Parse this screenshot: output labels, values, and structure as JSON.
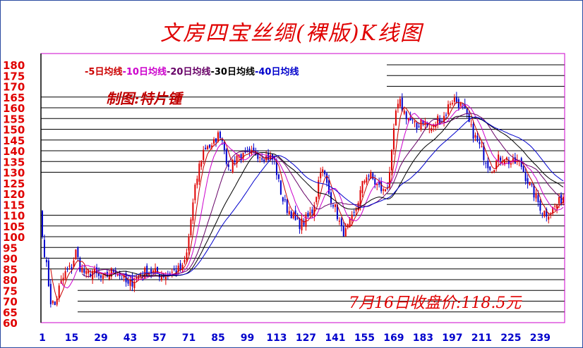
{
  "title": "文房四宝丝绸(裸版)K线图",
  "author_tag": "制图:特片锺",
  "close_note": "7月16日收盘价:118.5元",
  "legend": [
    {
      "label": "-5日均线",
      "color": "#cc0000"
    },
    {
      "label": "-10日均线",
      "color": "#cc00cc"
    },
    {
      "label": "-20日均线",
      "color": "#660066"
    },
    {
      "label": "-30日均线",
      "color": "#000000"
    },
    {
      "label": "-40日均线",
      "color": "#0000cc"
    }
  ],
  "colors": {
    "up": "#e00000",
    "down": "#0000cc",
    "axis_text": "#e00000",
    "x_text": "#0000cc",
    "border": "#cc00cc"
  },
  "chart_data": {
    "type": "candlestick",
    "x_ticks": [
      "1",
      "15",
      "29",
      "43",
      "57",
      "71",
      "85",
      "99",
      "113",
      "127",
      "141",
      "155",
      "169",
      "183",
      "197",
      "211",
      "225",
      "239"
    ],
    "y_ticks": [
      60,
      65,
      70,
      75,
      80,
      85,
      90,
      95,
      100,
      105,
      110,
      115,
      120,
      125,
      130,
      135,
      140,
      145,
      150,
      155,
      160,
      165,
      170,
      175,
      180
    ],
    "ylim": [
      60,
      180
    ],
    "xlim": [
      1,
      250
    ],
    "waypoints": [
      [
        1,
        100
      ],
      [
        3,
        86
      ],
      [
        5,
        70
      ],
      [
        7,
        68
      ],
      [
        9,
        76
      ],
      [
        12,
        83
      ],
      [
        15,
        86
      ],
      [
        17,
        93
      ],
      [
        19,
        86
      ],
      [
        22,
        82
      ],
      [
        25,
        84
      ],
      [
        28,
        81
      ],
      [
        30,
        80
      ],
      [
        33,
        83
      ],
      [
        36,
        85
      ],
      [
        38,
        82
      ],
      [
        40,
        80
      ],
      [
        42,
        77
      ],
      [
        45,
        80
      ],
      [
        48,
        83
      ],
      [
        52,
        84
      ],
      [
        56,
        83
      ],
      [
        60,
        82
      ],
      [
        64,
        84
      ],
      [
        68,
        85
      ],
      [
        70,
        92
      ],
      [
        72,
        108
      ],
      [
        74,
        122
      ],
      [
        76,
        133
      ],
      [
        78,
        140
      ],
      [
        80,
        143
      ],
      [
        82,
        141
      ],
      [
        84,
        146
      ],
      [
        86,
        148
      ],
      [
        88,
        142
      ],
      [
        90,
        130
      ],
      [
        92,
        135
      ],
      [
        94,
        138
      ],
      [
        97,
        137
      ],
      [
        100,
        138
      ],
      [
        103,
        139
      ],
      [
        106,
        138
      ],
      [
        108,
        137
      ],
      [
        110,
        137
      ],
      [
        112,
        135
      ],
      [
        114,
        125
      ],
      [
        116,
        117
      ],
      [
        118,
        113
      ],
      [
        120,
        111
      ],
      [
        122,
        107
      ],
      [
        124,
        106
      ],
      [
        126,
        107
      ],
      [
        128,
        109
      ],
      [
        130,
        112
      ],
      [
        132,
        120
      ],
      [
        134,
        132
      ],
      [
        136,
        128
      ],
      [
        138,
        120
      ],
      [
        140,
        116
      ],
      [
        142,
        110
      ],
      [
        144,
        103
      ],
      [
        146,
        102
      ],
      [
        148,
        106
      ],
      [
        150,
        110
      ],
      [
        152,
        117
      ],
      [
        154,
        124
      ],
      [
        156,
        129
      ],
      [
        158,
        128
      ],
      [
        160,
        125
      ],
      [
        162,
        123
      ],
      [
        164,
        121
      ],
      [
        166,
        124
      ],
      [
        168,
        138
      ],
      [
        170,
        158
      ],
      [
        172,
        162
      ],
      [
        174,
        158
      ],
      [
        176,
        155
      ],
      [
        178,
        153
      ],
      [
        180,
        150
      ],
      [
        182,
        155
      ],
      [
        184,
        153
      ],
      [
        186,
        150
      ],
      [
        188,
        151
      ],
      [
        190,
        155
      ],
      [
        192,
        154
      ],
      [
        194,
        158
      ],
      [
        196,
        163
      ],
      [
        198,
        164
      ],
      [
        200,
        162
      ],
      [
        202,
        160
      ],
      [
        204,
        155
      ],
      [
        206,
        150
      ],
      [
        208,
        146
      ],
      [
        210,
        142
      ],
      [
        212,
        138
      ],
      [
        214,
        134
      ],
      [
        216,
        132
      ],
      [
        218,
        135
      ],
      [
        220,
        137
      ],
      [
        222,
        137
      ],
      [
        224,
        135
      ],
      [
        226,
        134
      ],
      [
        228,
        135
      ],
      [
        230,
        133
      ],
      [
        232,
        128
      ],
      [
        234,
        124
      ],
      [
        236,
        120
      ],
      [
        238,
        116
      ],
      [
        240,
        112
      ],
      [
        242,
        111
      ],
      [
        244,
        112
      ],
      [
        246,
        114
      ],
      [
        248,
        116
      ],
      [
        250,
        118.5
      ]
    ],
    "ma_periods": [
      5,
      10,
      20,
      30,
      40
    ],
    "last_close": 118.5
  }
}
